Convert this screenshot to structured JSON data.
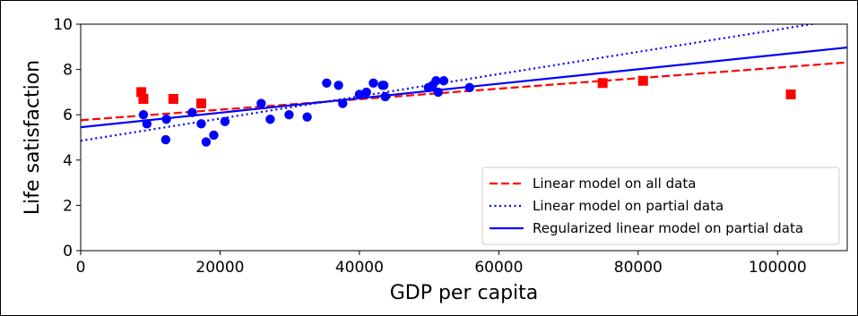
{
  "chart_data": {
    "type": "scatter",
    "xlabel": "GDP per capita",
    "ylabel": "Life satisfaction",
    "xlim": [
      0,
      110000
    ],
    "ylim": [
      0,
      10
    ],
    "x_ticks": [
      0,
      20000,
      40000,
      60000,
      80000,
      100000
    ],
    "x_tick_labels": [
      "0",
      "20000",
      "40000",
      "60000",
      "80000",
      "100000"
    ],
    "y_ticks": [
      0,
      2,
      4,
      6,
      8,
      10
    ],
    "y_tick_labels": [
      "0",
      "2",
      "4",
      "6",
      "8",
      "10"
    ],
    "grid": false,
    "legend_position": "lower-right",
    "series": [
      {
        "marker": "circle",
        "color": "#0000ff",
        "points": [
          [
            9000,
            6.0
          ],
          [
            9500,
            5.6
          ],
          [
            12200,
            4.9
          ],
          [
            12300,
            5.8
          ],
          [
            16000,
            6.1
          ],
          [
            17300,
            5.6
          ],
          [
            18000,
            4.8
          ],
          [
            19100,
            5.1
          ],
          [
            20700,
            5.7
          ],
          [
            25900,
            6.5
          ],
          [
            27200,
            5.8
          ],
          [
            29900,
            6.0
          ],
          [
            32500,
            5.9
          ],
          [
            35300,
            7.4
          ],
          [
            37000,
            7.3
          ],
          [
            37600,
            6.5
          ],
          [
            40000,
            6.9
          ],
          [
            41000,
            7.0
          ],
          [
            42000,
            7.4
          ],
          [
            43300,
            7.3
          ],
          [
            43500,
            7.3
          ],
          [
            43700,
            6.8
          ],
          [
            49900,
            7.2
          ],
          [
            50500,
            7.3
          ],
          [
            51000,
            7.5
          ],
          [
            51300,
            7.0
          ],
          [
            52100,
            7.5
          ],
          [
            55800,
            7.2
          ]
        ]
      },
      {
        "marker": "square",
        "color": "#ff0000",
        "points": [
          [
            8700,
            7.0
          ],
          [
            9000,
            6.7
          ],
          [
            13300,
            6.7
          ],
          [
            17300,
            6.5
          ],
          [
            74900,
            7.4
          ],
          [
            80700,
            7.5
          ],
          [
            101900,
            6.9
          ]
        ]
      }
    ],
    "lines": [
      {
        "name": "Linear model on all data",
        "style": "dashed",
        "color": "#ff0000",
        "intercept": 5.76,
        "slope": 2.32e-05
      },
      {
        "name": "Linear model on partial data",
        "style": "dotted",
        "color": "#0000ff",
        "intercept": 4.85,
        "slope": 4.91e-05
      },
      {
        "name": "Regularized linear model on partial data",
        "style": "solid",
        "color": "#0000ff",
        "intercept": 5.45,
        "slope": 3.2e-05
      }
    ]
  }
}
